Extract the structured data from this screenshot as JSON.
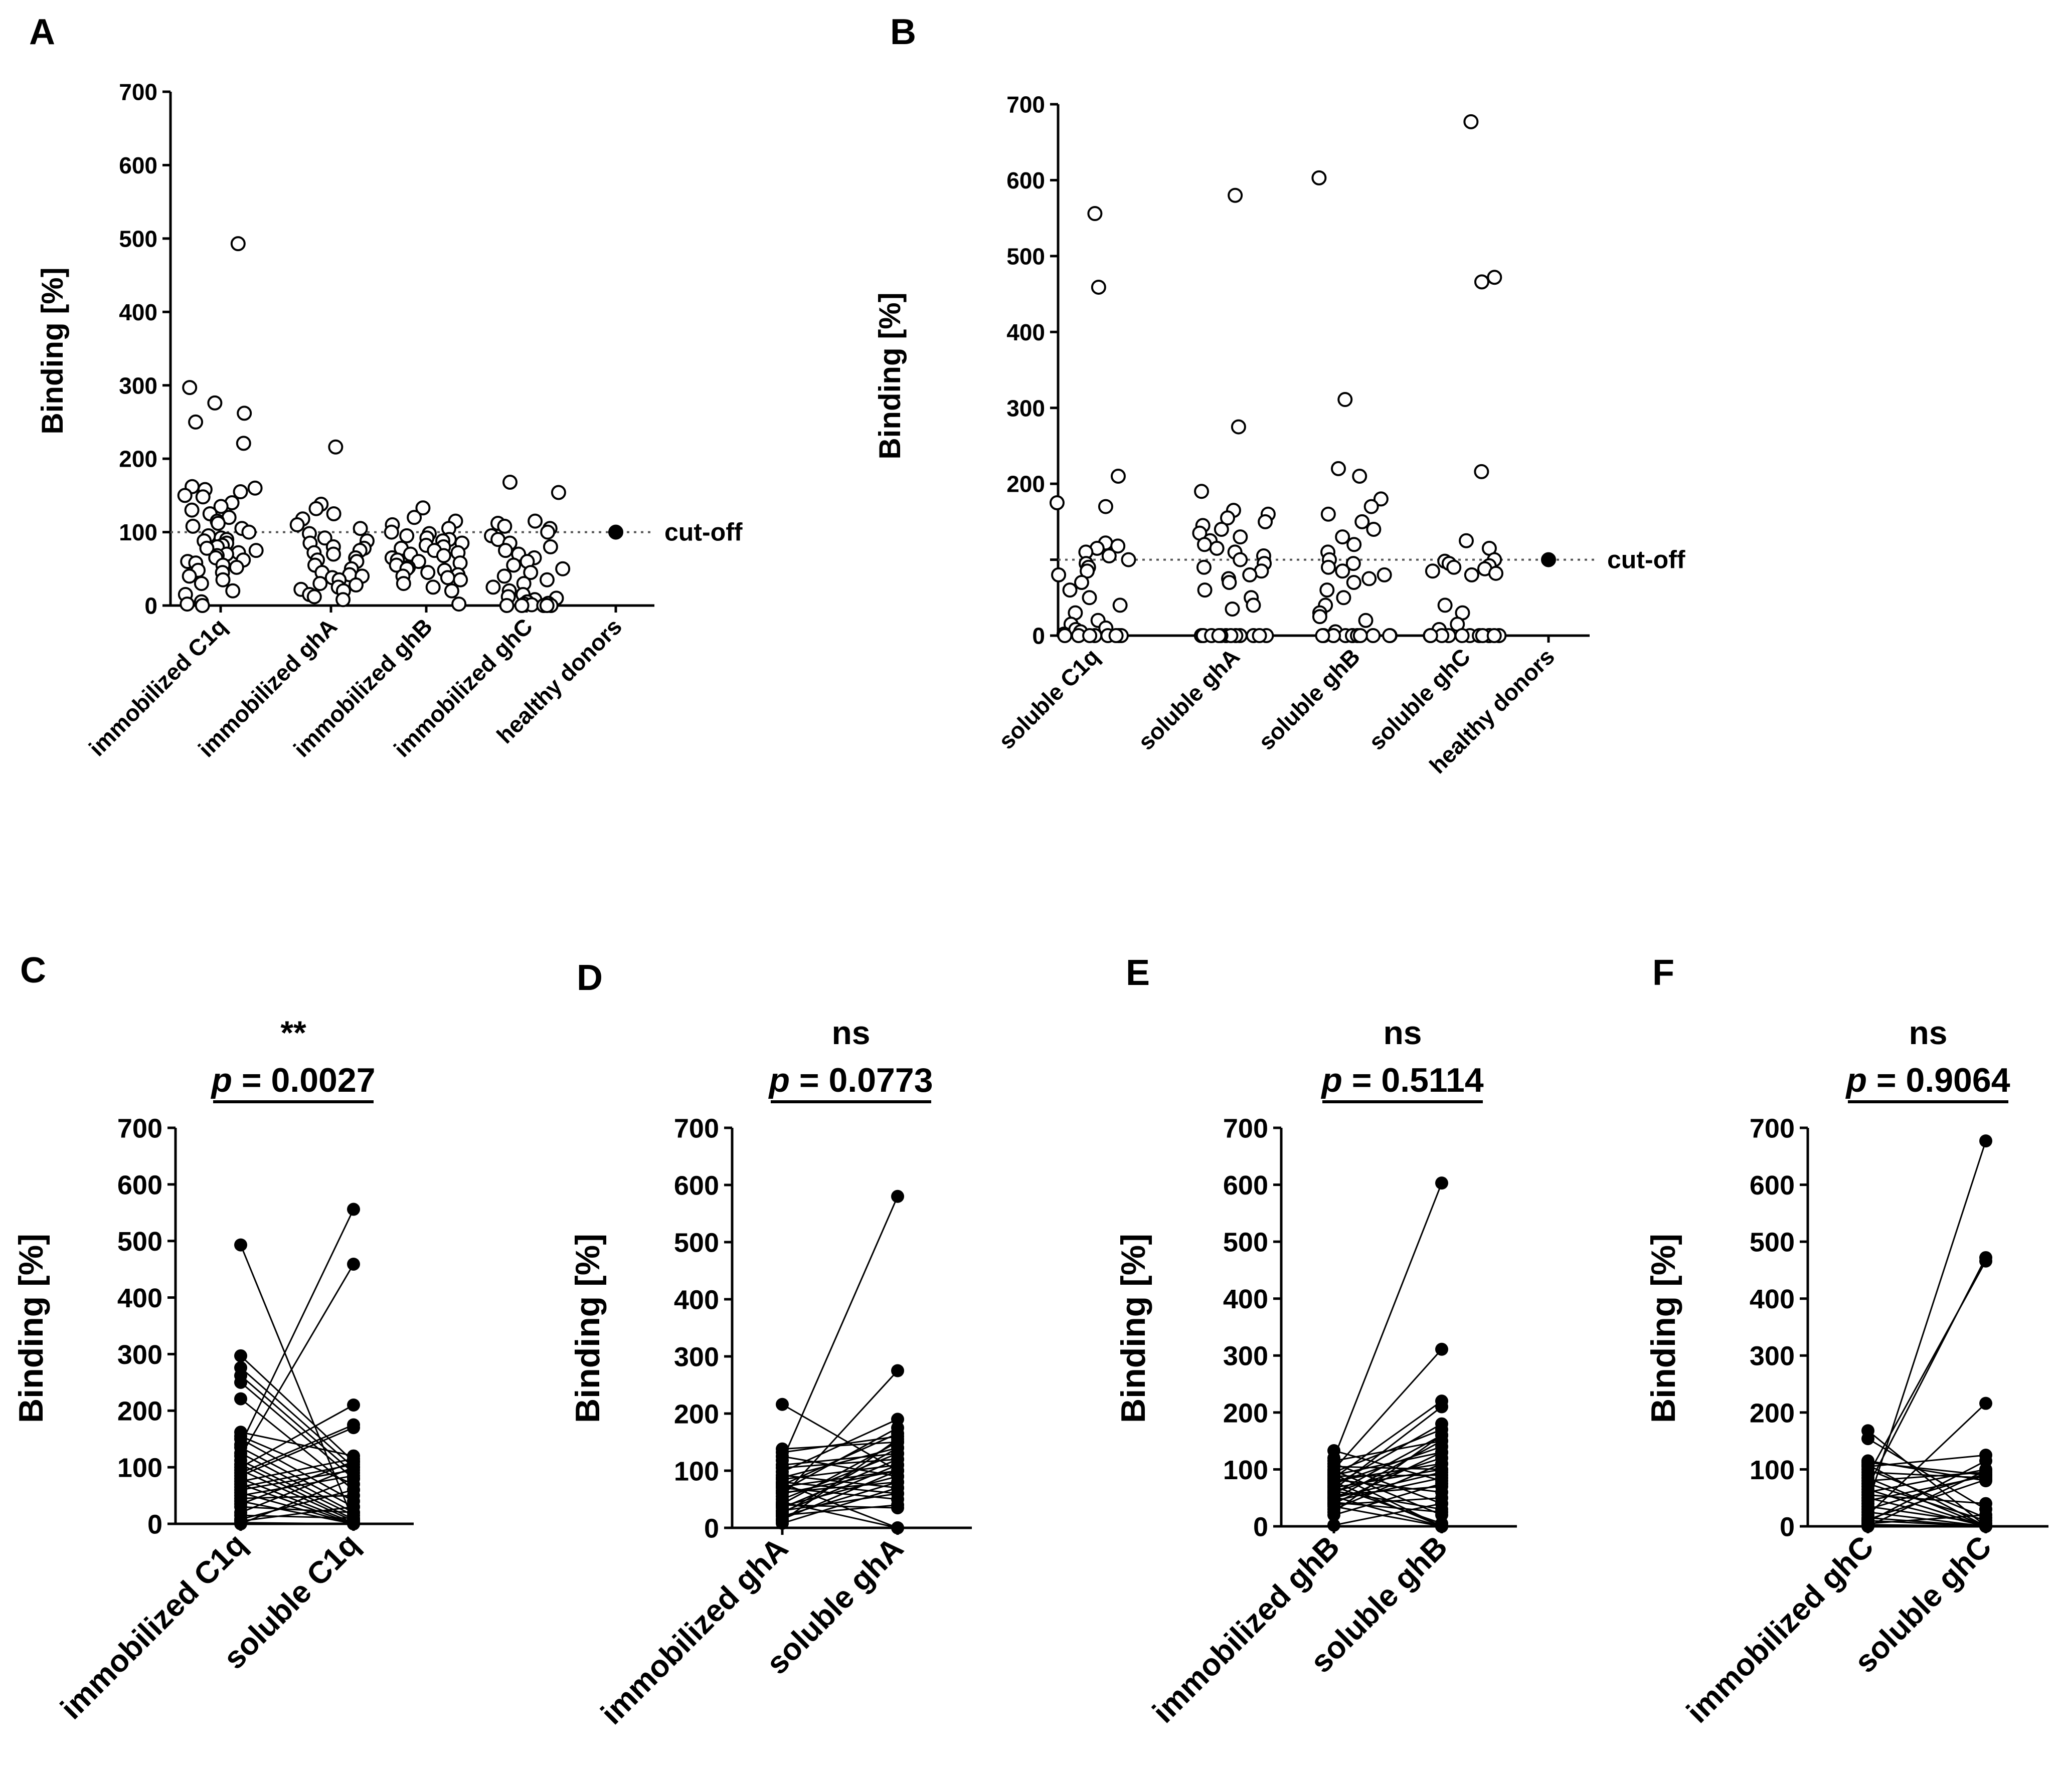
{
  "colors": {
    "ink": "#000000",
    "marker_open": "#ffffff",
    "cutoff_line": "#555555"
  },
  "chart_data": [
    {
      "panel": "A",
      "type": "scatter",
      "ylabel": "Binding [%]",
      "ylim": [
        0,
        700
      ],
      "yticks": [
        0,
        100,
        200,
        300,
        400,
        500,
        600,
        700
      ],
      "categories": [
        "immobilized C1q",
        "immobilized ghA",
        "immobilized ghB",
        "immobilized ghC",
        "healthy donors"
      ],
      "cutoff": {
        "value": 100,
        "label": "cut-off"
      },
      "marker": "open",
      "series": [
        {
          "name": "immobilized C1q",
          "values": [
            493,
            297,
            276,
            262,
            250,
            221,
            162,
            160,
            158,
            155,
            150,
            148,
            140,
            135,
            130,
            125,
            120,
            115,
            112,
            108,
            105,
            100,
            95,
            92,
            90,
            88,
            85,
            82,
            80,
            78,
            75,
            72,
            70,
            68,
            65,
            62,
            60,
            58,
            55,
            52,
            48,
            45,
            40,
            35,
            30,
            20,
            15,
            5,
            2,
            0
          ]
        },
        {
          "name": "immobilized ghA",
          "values": [
            216,
            138,
            132,
            125,
            118,
            110,
            105,
            98,
            92,
            88,
            85,
            80,
            78,
            75,
            72,
            70,
            65,
            62,
            60,
            55,
            50,
            45,
            42,
            40,
            38,
            35,
            30,
            28,
            25,
            22,
            20,
            15,
            12,
            8
          ]
        },
        {
          "name": "immobilized ghB",
          "values": [
            133,
            120,
            115,
            110,
            105,
            100,
            98,
            95,
            92,
            90,
            88,
            85,
            82,
            80,
            78,
            75,
            72,
            70,
            68,
            65,
            62,
            60,
            58,
            55,
            52,
            50,
            48,
            45,
            42,
            40,
            38,
            35,
            30,
            25,
            20,
            2
          ]
        },
        {
          "name": "immobilized ghC",
          "values": [
            168,
            154,
            115,
            112,
            108,
            105,
            100,
            95,
            90,
            85,
            80,
            75,
            70,
            65,
            60,
            55,
            50,
            45,
            40,
            35,
            30,
            25,
            20,
            15,
            12,
            10,
            8,
            5,
            3,
            2,
            1,
            0,
            0,
            0,
            0,
            0
          ]
        },
        {
          "name": "healthy donors",
          "values": [
            100
          ],
          "marker": "filled"
        }
      ]
    },
    {
      "panel": "B",
      "type": "scatter",
      "ylabel": "Binding [%]",
      "ylim": [
        0,
        700
      ],
      "yticks": [
        0,
        100,
        200,
        300,
        400,
        500,
        600,
        700
      ],
      "ytick_labels": [
        "0",
        "",
        "200",
        "300",
        "400",
        "500",
        "600",
        "700"
      ],
      "categories": [
        "soluble C1q",
        "soluble ghA",
        "soluble ghB",
        "soluble ghC",
        "healthy donors"
      ],
      "cutoff": {
        "value": 100,
        "label": "cut-off"
      },
      "marker": "open",
      "series": [
        {
          "name": "soluble C1q",
          "values": [
            556,
            459,
            210,
            175,
            170,
            122,
            118,
            115,
            110,
            105,
            100,
            95,
            90,
            85,
            80,
            70,
            60,
            50,
            40,
            30,
            20,
            15,
            10,
            8,
            5,
            2,
            0,
            0,
            0,
            0,
            0,
            0,
            0,
            0
          ]
        },
        {
          "name": "soluble ghA",
          "values": [
            580,
            275,
            190,
            165,
            160,
            155,
            150,
            145,
            140,
            135,
            130,
            125,
            120,
            115,
            110,
            105,
            100,
            95,
            90,
            85,
            80,
            75,
            70,
            60,
            50,
            40,
            35,
            0,
            0,
            0,
            0,
            0,
            0,
            0,
            0,
            0,
            0,
            0,
            0
          ]
        },
        {
          "name": "soluble ghB",
          "values": [
            603,
            311,
            220,
            210,
            180,
            170,
            160,
            150,
            140,
            130,
            120,
            110,
            100,
            95,
            90,
            85,
            80,
            75,
            70,
            60,
            50,
            40,
            30,
            25,
            20,
            5,
            0,
            0,
            0,
            0,
            0,
            0,
            0,
            0,
            0,
            0,
            0
          ]
        },
        {
          "name": "soluble ghC",
          "values": [
            677,
            472,
            466,
            216,
            125,
            115,
            100,
            98,
            95,
            92,
            90,
            88,
            85,
            82,
            80,
            40,
            30,
            15,
            8,
            0,
            0,
            0,
            0,
            0,
            0,
            0,
            0,
            0,
            0,
            0,
            0
          ]
        },
        {
          "name": "healthy donors",
          "values": [
            100
          ],
          "marker": "filled"
        }
      ]
    },
    {
      "panel": "C",
      "type": "paired_line",
      "ylabel": "Binding [%]",
      "ylim": [
        0,
        700
      ],
      "yticks": [
        0,
        100,
        200,
        300,
        400,
        500,
        600,
        700
      ],
      "categories": [
        "immobilized C1q",
        "soluble C1q"
      ],
      "significance": "**",
      "p_prefix": "p",
      "p_suffix": " = 0.0027",
      "pairs": [
        [
          493,
          5
        ],
        [
          297,
          110
        ],
        [
          276,
          100
        ],
        [
          262,
          90
        ],
        [
          250,
          80
        ],
        [
          221,
          60
        ],
        [
          162,
          120
        ],
        [
          155,
          70
        ],
        [
          150,
          40
        ],
        [
          140,
          556
        ],
        [
          135,
          30
        ],
        [
          125,
          20
        ],
        [
          120,
          459
        ],
        [
          112,
          15
        ],
        [
          105,
          8
        ],
        [
          100,
          210
        ],
        [
          95,
          5
        ],
        [
          90,
          175
        ],
        [
          85,
          170
        ],
        [
          80,
          2
        ],
        [
          75,
          115
        ],
        [
          70,
          0
        ],
        [
          65,
          105
        ],
        [
          60,
          95
        ],
        [
          55,
          0
        ],
        [
          50,
          85
        ],
        [
          45,
          50
        ],
        [
          40,
          0
        ],
        [
          35,
          110
        ],
        [
          30,
          20
        ],
        [
          20,
          100
        ],
        [
          15,
          10
        ],
        [
          8,
          60
        ],
        [
          5,
          30
        ],
        [
          2,
          0
        ],
        [
          0,
          80
        ]
      ]
    },
    {
      "panel": "D",
      "type": "paired_line",
      "ylabel": "Binding [%]",
      "ylim": [
        0,
        700
      ],
      "yticks": [
        0,
        100,
        200,
        300,
        400,
        500,
        600,
        700
      ],
      "categories": [
        "immobilized ghA",
        "soluble ghA"
      ],
      "significance": "ns",
      "p_prefix": "p",
      "p_suffix": " = 0.0773",
      "pairs": [
        [
          216,
          100
        ],
        [
          138,
          150
        ],
        [
          132,
          160
        ],
        [
          125,
          90
        ],
        [
          118,
          580
        ],
        [
          110,
          130
        ],
        [
          105,
          120
        ],
        [
          98,
          190
        ],
        [
          92,
          70
        ],
        [
          88,
          140
        ],
        [
          85,
          110
        ],
        [
          80,
          60
        ],
        [
          78,
          0
        ],
        [
          75,
          165
        ],
        [
          72,
          100
        ],
        [
          70,
          50
        ],
        [
          65,
          175
        ],
        [
          62,
          80
        ],
        [
          60,
          100
        ],
        [
          55,
          275
        ],
        [
          50,
          130
        ],
        [
          45,
          0
        ],
        [
          42,
          150
        ],
        [
          40,
          35
        ],
        [
          38,
          90
        ],
        [
          35,
          120
        ],
        [
          30,
          60
        ],
        [
          28,
          110
        ],
        [
          25,
          140
        ],
        [
          22,
          40
        ],
        [
          20,
          80
        ],
        [
          15,
          100
        ],
        [
          12,
          155
        ],
        [
          8,
          70
        ]
      ]
    },
    {
      "panel": "E",
      "type": "paired_line",
      "ylabel": "Binding [%]",
      "ylim": [
        0,
        700
      ],
      "yticks": [
        0,
        100,
        200,
        300,
        400,
        500,
        600,
        700
      ],
      "categories": [
        "immobilized ghB",
        "soluble ghB"
      ],
      "significance": "ns",
      "p_prefix": "p",
      "p_suffix": " = 0.5114",
      "pairs": [
        [
          133,
          80
        ],
        [
          120,
          603
        ],
        [
          115,
          150
        ],
        [
          110,
          40
        ],
        [
          105,
          100
        ],
        [
          100,
          311
        ],
        [
          98,
          20
        ],
        [
          95,
          170
        ],
        [
          92,
          0
        ],
        [
          90,
          130
        ],
        [
          88,
          90
        ],
        [
          85,
          220
        ],
        [
          82,
          60
        ],
        [
          80,
          110
        ],
        [
          78,
          0
        ],
        [
          75,
          140
        ],
        [
          72,
          180
        ],
        [
          70,
          5
        ],
        [
          68,
          100
        ],
        [
          65,
          210
        ],
        [
          62,
          30
        ],
        [
          60,
          120
        ],
        [
          58,
          160
        ],
        [
          55,
          70
        ],
        [
          52,
          0
        ],
        [
          50,
          95
        ],
        [
          48,
          150
        ],
        [
          45,
          85
        ],
        [
          42,
          25
        ],
        [
          40,
          130
        ],
        [
          38,
          50
        ],
        [
          35,
          0
        ],
        [
          30,
          110
        ],
        [
          25,
          160
        ],
        [
          20,
          75
        ],
        [
          2,
          40
        ]
      ]
    },
    {
      "panel": "F",
      "type": "paired_line",
      "ylabel": "Binding  [%]",
      "ylim": [
        0,
        700
      ],
      "yticks": [
        0,
        100,
        200,
        300,
        400,
        500,
        600,
        700
      ],
      "categories": [
        "immobilized ghC",
        "soluble ghC"
      ],
      "significance": "ns",
      "p_prefix": "p",
      "p_suffix": " = 0.9064",
      "pairs": [
        [
          168,
          0
        ],
        [
          154,
          30
        ],
        [
          115,
          80
        ],
        [
          112,
          90
        ],
        [
          108,
          0
        ],
        [
          105,
          125
        ],
        [
          100,
          15
        ],
        [
          95,
          85
        ],
        [
          90,
          466
        ],
        [
          85,
          0
        ],
        [
          80,
          95
        ],
        [
          75,
          10
        ],
        [
          70,
          472
        ],
        [
          65,
          0
        ],
        [
          60,
          100
        ],
        [
          55,
          40
        ],
        [
          50,
          0
        ],
        [
          45,
          88
        ],
        [
          40,
          677
        ],
        [
          35,
          5
        ],
        [
          30,
          92
        ],
        [
          25,
          0
        ],
        [
          20,
          216
        ],
        [
          15,
          0
        ],
        [
          12,
          82
        ],
        [
          10,
          0
        ],
        [
          8,
          115
        ],
        [
          5,
          20
        ],
        [
          3,
          0
        ],
        [
          0,
          98
        ]
      ]
    }
  ]
}
